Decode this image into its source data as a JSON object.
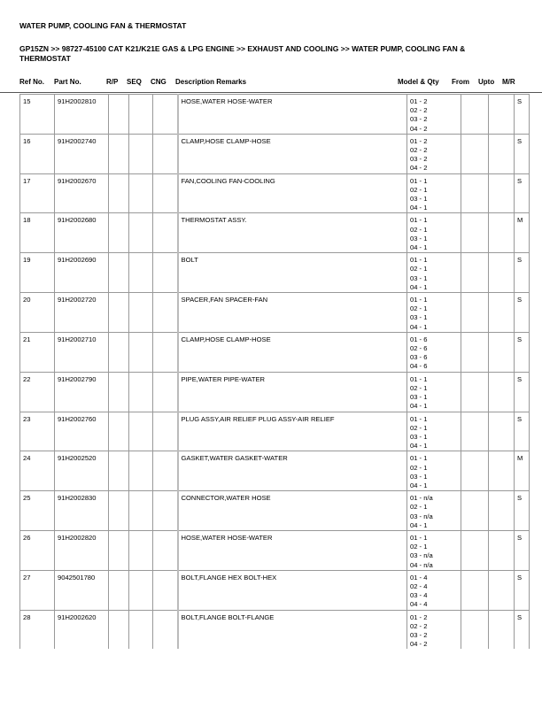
{
  "title": "WATER PUMP, COOLING FAN & THERMOSTAT",
  "breadcrumb": "GP15ZN >> 98727-45100 CAT K21/K21E GAS & LPG ENGINE >> EXHAUST AND COOLING >> WATER PUMP, COOLING FAN & THERMOSTAT",
  "columns": {
    "ref": "Ref No.",
    "part": "Part No.",
    "rp": "R/P",
    "seq": "SEQ",
    "cng": "CNG",
    "desc": "Description Remarks",
    "model": "Model & Qty",
    "from": "From",
    "upto": "Upto",
    "mr": "M/R"
  },
  "rows": [
    {
      "ref": "15",
      "part": "91H2002810",
      "desc": "HOSE,WATER HOSE-WATER",
      "qty": [
        "01 - 2",
        "02 - 2",
        "03 - 2",
        "04 - 2"
      ],
      "mr": "S"
    },
    {
      "ref": "16",
      "part": "91H2002740",
      "desc": "CLAMP,HOSE CLAMP-HOSE",
      "qty": [
        "01 - 2",
        "02 - 2",
        "03 - 2",
        "04 - 2"
      ],
      "mr": "S"
    },
    {
      "ref": "17",
      "part": "91H2002670",
      "desc": "FAN,COOLING FAN-COOLING",
      "qty": [
        "01 - 1",
        "02 - 1",
        "03 - 1",
        "04 - 1"
      ],
      "mr": "S"
    },
    {
      "ref": "18",
      "part": "91H2002680",
      "desc": "THERMOSTAT ASSY.",
      "qty": [
        "01 - 1",
        "02 - 1",
        "03 - 1",
        "04 - 1"
      ],
      "mr": "M"
    },
    {
      "ref": "19",
      "part": "91H2002690",
      "desc": "BOLT",
      "qty": [
        "01 - 1",
        "02 - 1",
        "03 - 1",
        "04 - 1"
      ],
      "mr": "S"
    },
    {
      "ref": "20",
      "part": "91H2002720",
      "desc": "SPACER,FAN SPACER-FAN",
      "qty": [
        "01 - 1",
        "02 - 1",
        "03 - 1",
        "04 - 1"
      ],
      "mr": "S"
    },
    {
      "ref": "21",
      "part": "91H2002710",
      "desc": "CLAMP,HOSE CLAMP-HOSE",
      "qty": [
        "01 - 6",
        "02 - 6",
        "03 - 6",
        "04 - 6"
      ],
      "mr": "S"
    },
    {
      "ref": "22",
      "part": "91H2002790",
      "desc": "PIPE,WATER PIPE-WATER",
      "qty": [
        "01 - 1",
        "02 - 1",
        "03 - 1",
        "04 - 1"
      ],
      "mr": "S"
    },
    {
      "ref": "23",
      "part": "91H2002760",
      "desc": "PLUG ASSY,AIR RELIEF PLUG ASSY-AIR RELIEF",
      "qty": [
        "01 - 1",
        "02 - 1",
        "03 - 1",
        "04 - 1"
      ],
      "mr": "S"
    },
    {
      "ref": "24",
      "part": "91H2002520",
      "desc": "GASKET,WATER GASKET-WATER",
      "qty": [
        "01 - 1",
        "02 - 1",
        "03 - 1",
        "04 - 1"
      ],
      "mr": "M"
    },
    {
      "ref": "25",
      "part": "91H2002830",
      "desc": "CONNECTOR,WATER HOSE",
      "qty": [
        "01 - n/a",
        "02 - 1",
        "03 - n/a",
        "04 - 1"
      ],
      "mr": "S"
    },
    {
      "ref": "26",
      "part": "91H2002820",
      "desc": "HOSE,WATER HOSE-WATER",
      "qty": [
        "01 - 1",
        "02 - 1",
        "03 - n/a",
        "04 - n/a"
      ],
      "mr": "S"
    },
    {
      "ref": "27",
      "part": "9042501780",
      "desc": "BOLT,FLANGE HEX BOLT-HEX",
      "qty": [
        "01 - 4",
        "02 - 4",
        "03 - 4",
        "04 - 4"
      ],
      "mr": "S"
    },
    {
      "ref": "28",
      "part": "91H2002620",
      "desc": "BOLT,FLANGE BOLT-FLANGE",
      "qty": [
        "01 - 2",
        "02 - 2",
        "03 - 2",
        "04 - 2"
      ],
      "mr": "S"
    }
  ]
}
